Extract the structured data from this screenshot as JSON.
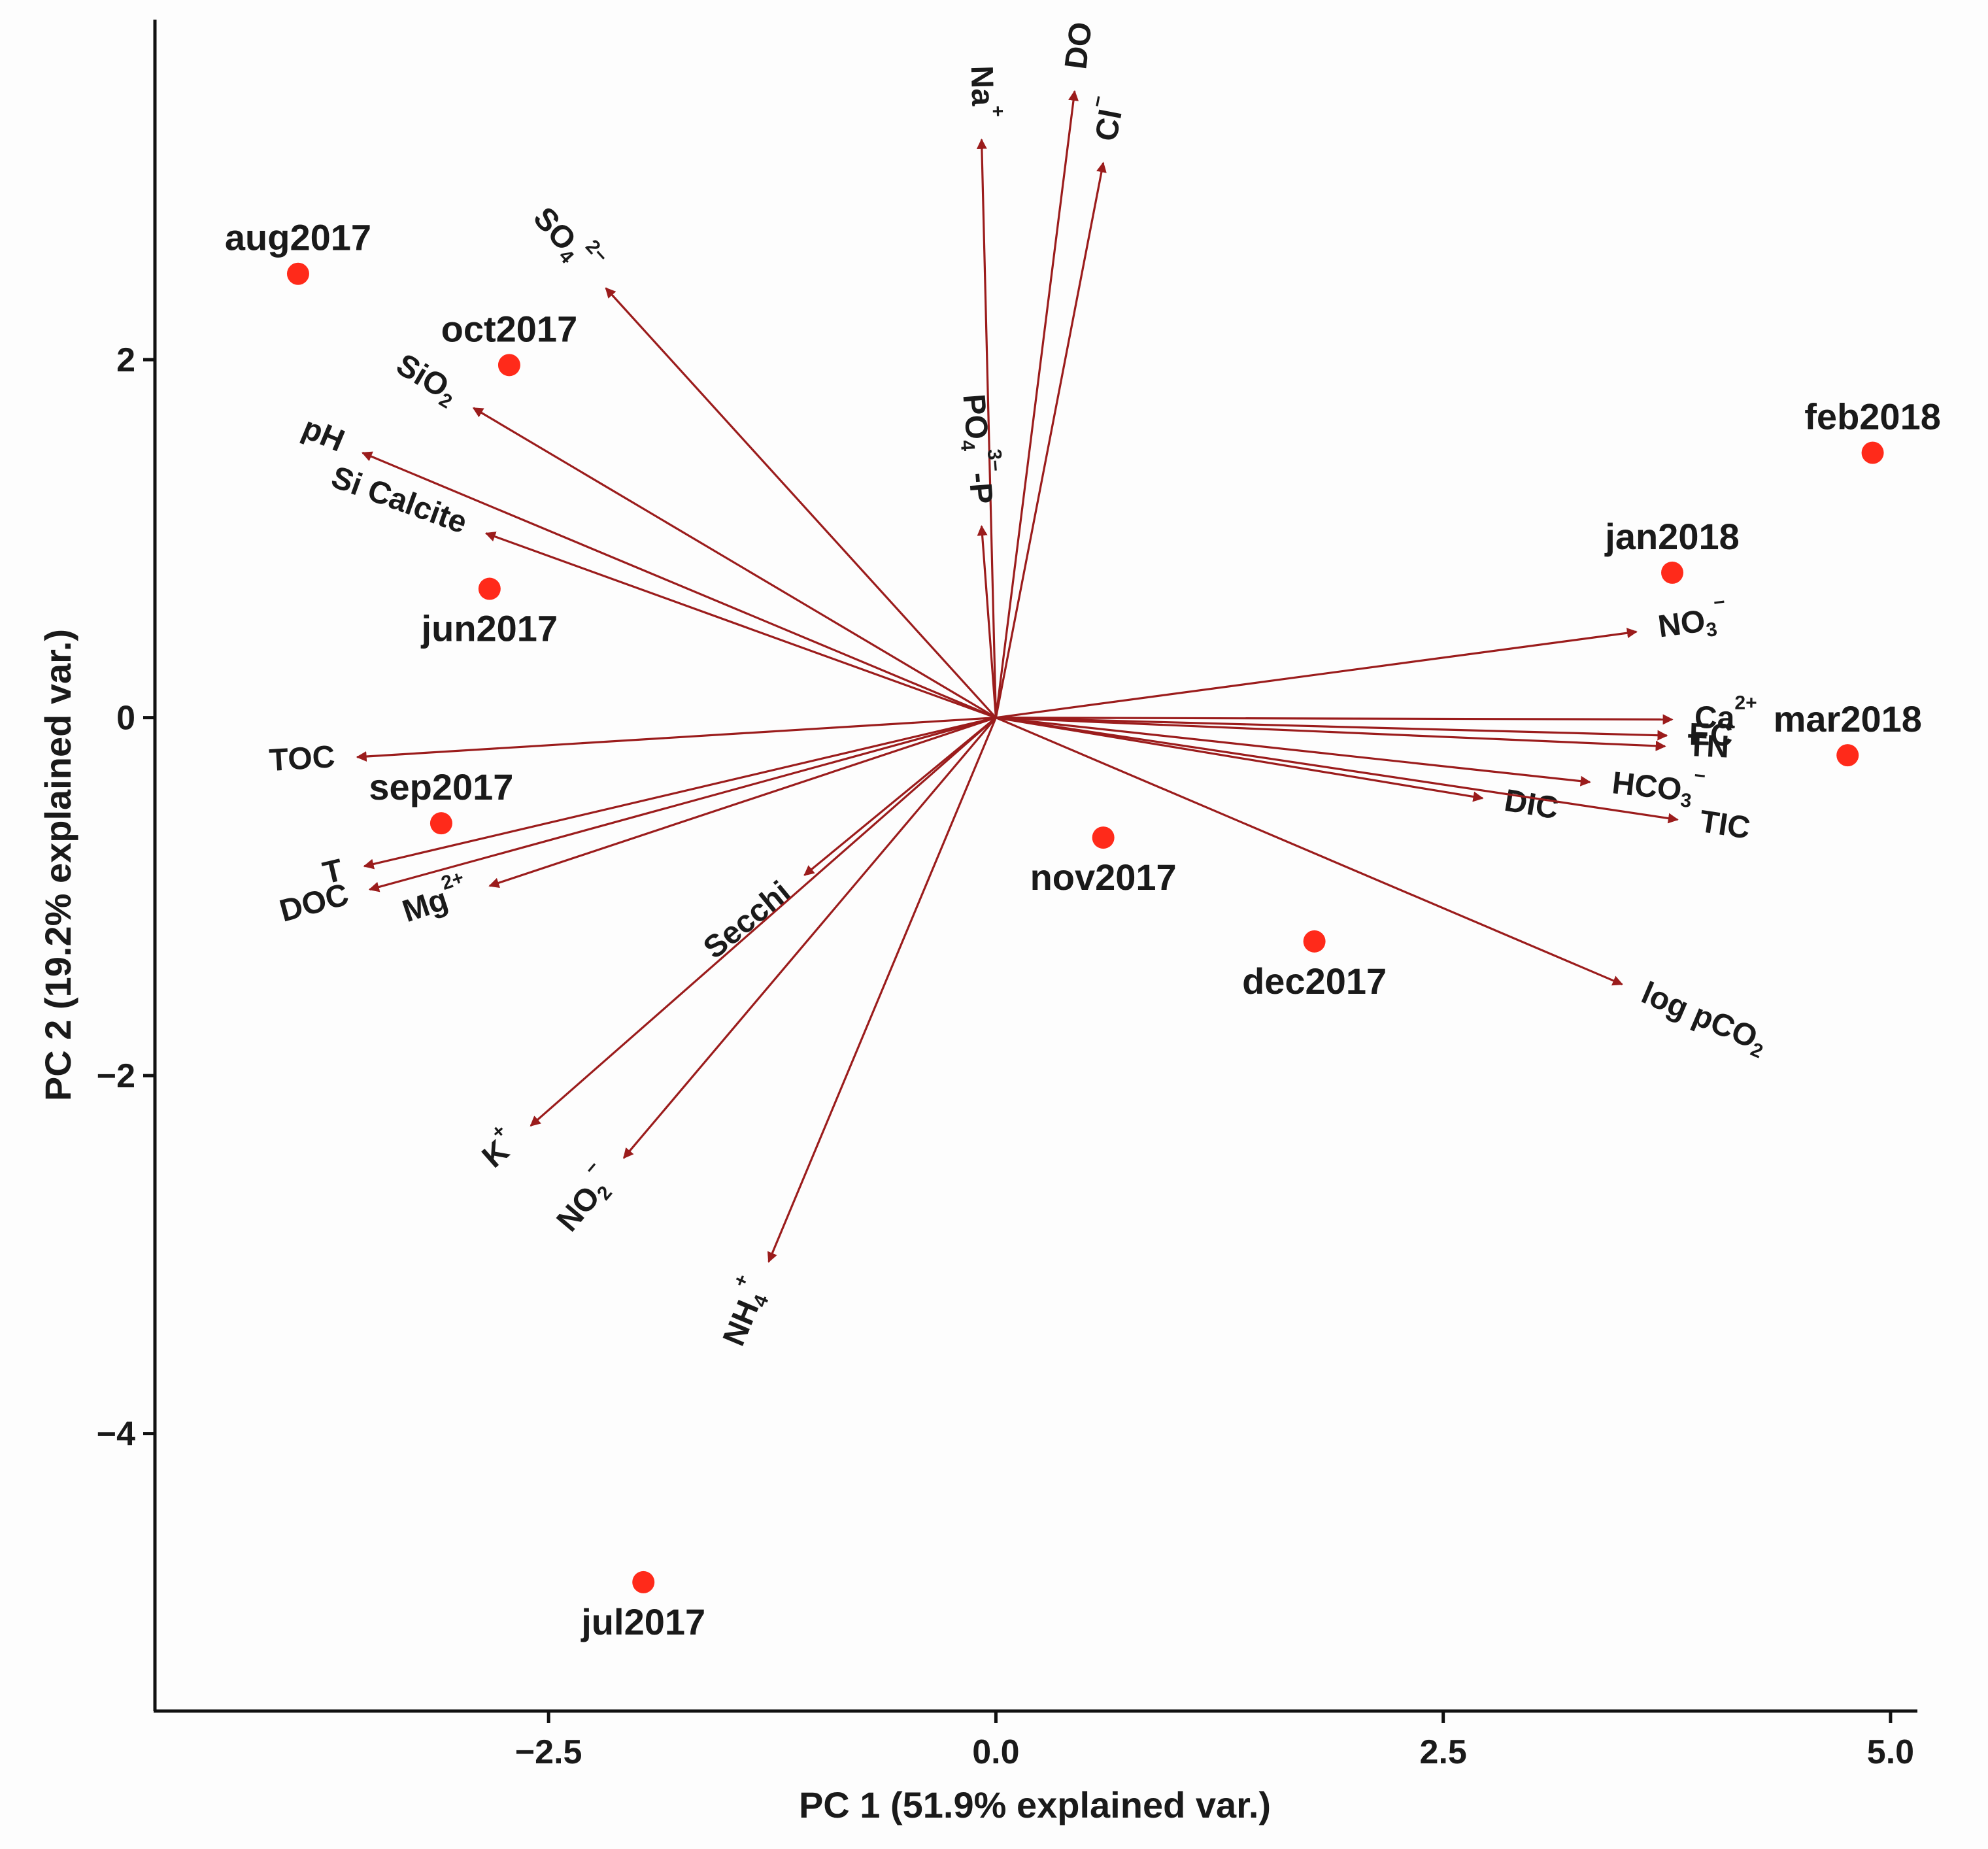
{
  "chart_data": {
    "type": "scatter",
    "title": "",
    "xlabel": "PC 1 (51.9% explained var.)",
    "ylabel": "PC 2 (19.2% explained var.)",
    "xlim": [
      -4.7,
      5.15
    ],
    "ylim": [
      -5.55,
      3.9
    ],
    "xticks": [
      -2.5,
      0.0,
      2.5,
      5.0
    ],
    "xtick_labels": [
      "−2.5",
      "0.0",
      "2.5",
      "5.0"
    ],
    "yticks": [
      2,
      0,
      -2,
      -4
    ],
    "ytick_labels": [
      "2",
      "0",
      "−2",
      "−4"
    ],
    "grid": false,
    "point_color": "#ff2a1a",
    "arrow_color": "#9b1c1c",
    "observations": [
      {
        "label": "aug2017",
        "x": -3.9,
        "y": 2.48
      },
      {
        "label": "oct2017",
        "x": -2.72,
        "y": 1.97
      },
      {
        "label": "jun2017",
        "x": -2.83,
        "y": 0.72
      },
      {
        "label": "sep2017",
        "x": -3.1,
        "y": -0.59
      },
      {
        "label": "jul2017",
        "x": -1.97,
        "y": -4.83
      },
      {
        "label": "nov2017",
        "x": 0.6,
        "y": -0.67
      },
      {
        "label": "dec2017",
        "x": 1.78,
        "y": -1.25
      },
      {
        "label": "jan2018",
        "x": 3.78,
        "y": 0.81
      },
      {
        "label": "feb2018",
        "x": 4.9,
        "y": 1.48
      },
      {
        "label": "mar2018",
        "x": 4.76,
        "y": -0.21
      }
    ],
    "loadings": [
      {
        "name": "DO",
        "main": "DO",
        "sub": "",
        "sup": "",
        "x": 0.44,
        "y": 3.5
      },
      {
        "name": "Cl-",
        "main": "Cl",
        "sub": "",
        "sup": "−",
        "x": 0.6,
        "y": 3.1
      },
      {
        "name": "Na+",
        "main": "Na",
        "sub": "",
        "sup": "+",
        "x": -0.08,
        "y": 3.23
      },
      {
        "name": "SO4 2-",
        "main": "SO",
        "sub": "4",
        "sup": "2−",
        "x": -2.18,
        "y": 2.4
      },
      {
        "name": "SiO2",
        "main": "SiO",
        "sub": "2",
        "sup": "",
        "x": -2.92,
        "y": 1.73
      },
      {
        "name": "pH",
        "main": "pH",
        "sub": "",
        "sup": "",
        "x": -3.54,
        "y": 1.48
      },
      {
        "name": "Si Calcite",
        "main": "Si Calcite",
        "sub": "",
        "sup": "",
        "x": -2.85,
        "y": 1.03
      },
      {
        "name": "PO4 3- -P",
        "main": "PO",
        "sub": "4",
        "sup": "3−",
        "tail": "-P",
        "x": -0.08,
        "y": 1.07
      },
      {
        "name": "NO3-",
        "main": "NO",
        "sub": "3",
        "sup": "−",
        "x": 3.58,
        "y": 0.48
      },
      {
        "name": "Ca2+",
        "main": "Ca",
        "sub": "",
        "sup": "2+",
        "x": 3.78,
        "y": -0.01
      },
      {
        "name": "EC",
        "main": "EC",
        "sub": "",
        "sup": "",
        "x": 3.75,
        "y": -0.1
      },
      {
        "name": "TN",
        "main": "TN",
        "sub": "",
        "sup": "",
        "x": 3.74,
        "y": -0.16
      },
      {
        "name": "HCO3-",
        "main": "HCO",
        "sub": "3",
        "sup": "−",
        "x": 3.32,
        "y": -0.36
      },
      {
        "name": "DIC",
        "main": "DIC",
        "sub": "",
        "sup": "",
        "x": 2.72,
        "y": -0.45
      },
      {
        "name": "TIC",
        "main": "TIC",
        "sub": "",
        "sup": "",
        "x": 3.81,
        "y": -0.57
      },
      {
        "name": "log pCO2",
        "main": "log pCO",
        "sub": "2",
        "sup": "",
        "x": 3.5,
        "y": -1.49
      },
      {
        "name": "TOC",
        "main": "TOC",
        "sub": "",
        "sup": "",
        "x": -3.57,
        "y": -0.22
      },
      {
        "name": "T",
        "main": "T",
        "sub": "",
        "sup": "",
        "x": -3.53,
        "y": -0.83
      },
      {
        "name": "DOC",
        "main": "DOC",
        "sub": "",
        "sup": "",
        "x": -3.5,
        "y": -0.96
      },
      {
        "name": "Mg2+",
        "main": "Mg",
        "sub": "",
        "sup": "2+",
        "x": -2.83,
        "y": -0.94
      },
      {
        "name": "Secchi",
        "main": "Secchi",
        "sub": "",
        "sup": "",
        "x": -1.07,
        "y": -0.88
      },
      {
        "name": "K+",
        "main": "K",
        "sub": "",
        "sup": "+",
        "x": -2.6,
        "y": -2.28
      },
      {
        "name": "NO2-",
        "main": "NO",
        "sub": "2",
        "sup": "−",
        "x": -2.08,
        "y": -2.46
      },
      {
        "name": "NH4+",
        "main": "NH",
        "sub": "4",
        "sup": "+",
        "x": -1.27,
        "y": -3.04
      }
    ]
  }
}
